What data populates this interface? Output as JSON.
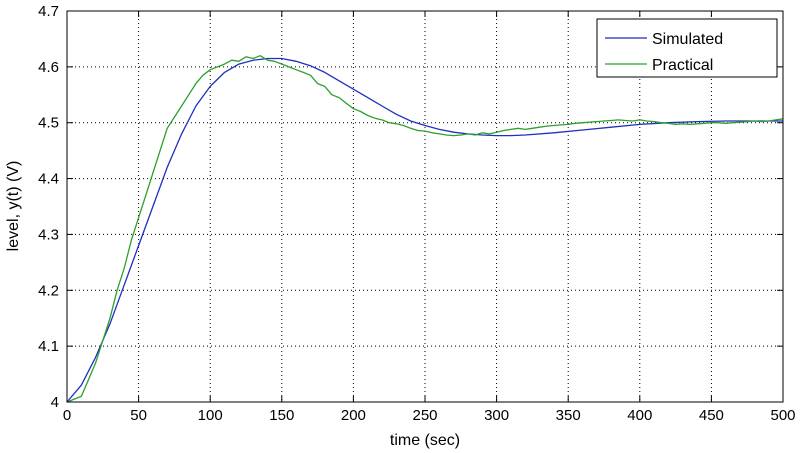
{
  "chart_data": {
    "type": "line",
    "title": "",
    "xlabel": "time (sec)",
    "ylabel": "level, y(t) (V)",
    "xlim": [
      0,
      500
    ],
    "ylim": [
      4.0,
      4.7
    ],
    "xticks": [
      "0",
      "50",
      "100",
      "150",
      "200",
      "250",
      "300",
      "350",
      "400",
      "450",
      "500"
    ],
    "yticks": [
      "4",
      "4.1",
      "4.2",
      "4.3",
      "4.4",
      "4.5",
      "4.6",
      "4.7"
    ],
    "grid": true,
    "legend_position": "top-right",
    "series": [
      {
        "name": "Simulated",
        "color": "#1f2fbf",
        "x": [
          0,
          10,
          20,
          30,
          40,
          50,
          60,
          70,
          80,
          90,
          100,
          110,
          120,
          130,
          140,
          150,
          160,
          170,
          180,
          190,
          200,
          210,
          220,
          230,
          240,
          250,
          260,
          270,
          280,
          290,
          300,
          310,
          320,
          340,
          360,
          380,
          400,
          420,
          440,
          460,
          480,
          500
        ],
        "y": [
          3.99,
          4.03,
          4.08,
          4.14,
          4.21,
          4.28,
          4.35,
          4.42,
          4.48,
          4.53,
          4.565,
          4.59,
          4.605,
          4.612,
          4.615,
          4.615,
          4.61,
          4.602,
          4.59,
          4.575,
          4.56,
          4.545,
          4.53,
          4.515,
          4.503,
          4.495,
          4.488,
          4.483,
          4.48,
          4.478,
          4.477,
          4.477,
          4.478,
          4.482,
          4.487,
          4.492,
          4.497,
          4.5,
          4.502,
          4.503,
          4.503,
          4.503
        ]
      },
      {
        "name": "Practical",
        "color": "#2ca02c",
        "x": [
          0,
          10,
          15,
          20,
          25,
          30,
          35,
          40,
          45,
          50,
          55,
          60,
          65,
          70,
          75,
          80,
          85,
          90,
          95,
          100,
          105,
          110,
          115,
          120,
          125,
          130,
          135,
          140,
          145,
          150,
          155,
          160,
          165,
          170,
          175,
          180,
          185,
          190,
          195,
          200,
          205,
          210,
          215,
          220,
          225,
          230,
          235,
          240,
          245,
          250,
          255,
          260,
          265,
          270,
          275,
          280,
          285,
          290,
          295,
          300,
          305,
          310,
          315,
          320,
          325,
          330,
          335,
          340,
          345,
          350,
          355,
          360,
          365,
          370,
          375,
          380,
          385,
          390,
          395,
          400,
          405,
          410,
          415,
          420,
          425,
          430,
          435,
          440,
          445,
          450,
          455,
          460,
          465,
          470,
          475,
          480,
          485,
          490,
          495,
          500
        ],
        "y": [
          3.98,
          4.01,
          4.04,
          4.07,
          4.11,
          4.15,
          4.2,
          4.24,
          4.29,
          4.33,
          4.37,
          4.41,
          4.45,
          4.49,
          4.51,
          4.53,
          4.55,
          4.57,
          4.585,
          4.595,
          4.6,
          4.605,
          4.612,
          4.61,
          4.618,
          4.615,
          4.62,
          4.612,
          4.61,
          4.605,
          4.6,
          4.595,
          4.59,
          4.585,
          4.57,
          4.565,
          4.55,
          4.545,
          4.535,
          4.525,
          4.52,
          4.513,
          4.508,
          4.505,
          4.5,
          4.498,
          4.495,
          4.49,
          4.486,
          4.485,
          4.482,
          4.48,
          4.478,
          4.477,
          4.478,
          4.48,
          4.478,
          4.482,
          4.48,
          4.483,
          4.486,
          4.488,
          4.49,
          4.488,
          4.49,
          4.492,
          4.494,
          4.495,
          4.496,
          4.497,
          4.499,
          4.5,
          4.501,
          4.502,
          4.503,
          4.504,
          4.505,
          4.504,
          4.503,
          4.505,
          4.503,
          4.502,
          4.5,
          4.499,
          4.497,
          4.498,
          4.497,
          4.498,
          4.499,
          4.5,
          4.5,
          4.499,
          4.5,
          4.501,
          4.502,
          4.503,
          4.502,
          4.503,
          4.505,
          4.507
        ]
      }
    ]
  }
}
